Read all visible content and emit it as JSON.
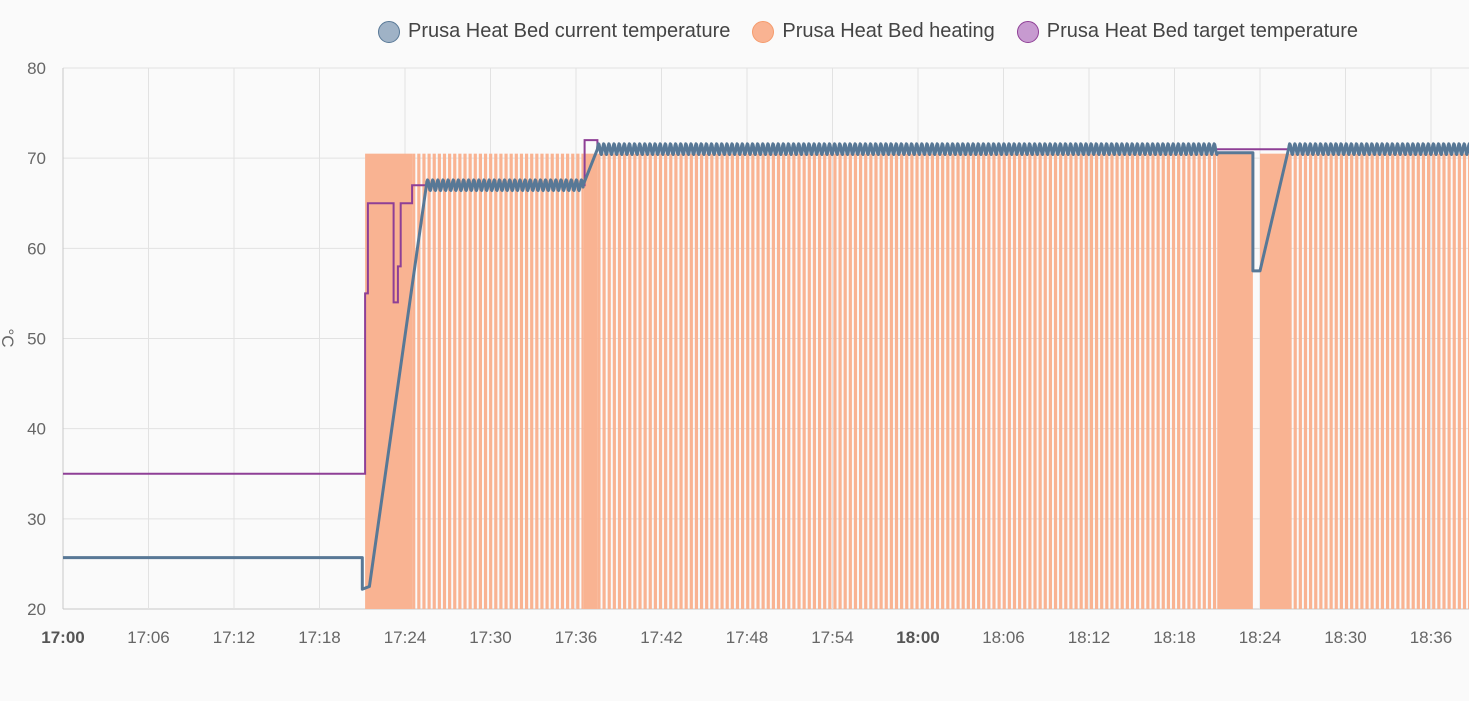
{
  "chart_data": {
    "type": "line",
    "title": "",
    "ylabel": "°C",
    "ylim": [
      20,
      80
    ],
    "xlim": [
      "17:00",
      "18:39"
    ],
    "y_ticks": [
      20,
      30,
      40,
      50,
      60,
      70,
      80
    ],
    "x_ticks": [
      {
        "label": "17:00",
        "bold": true
      },
      {
        "label": "17:06",
        "bold": false
      },
      {
        "label": "17:12",
        "bold": false
      },
      {
        "label": "17:18",
        "bold": false
      },
      {
        "label": "17:24",
        "bold": false
      },
      {
        "label": "17:30",
        "bold": false
      },
      {
        "label": "17:36",
        "bold": false
      },
      {
        "label": "17:42",
        "bold": false
      },
      {
        "label": "17:48",
        "bold": false
      },
      {
        "label": "17:54",
        "bold": false
      },
      {
        "label": "18:00",
        "bold": true
      },
      {
        "label": "18:06",
        "bold": false
      },
      {
        "label": "18:12",
        "bold": false
      },
      {
        "label": "18:18",
        "bold": false
      },
      {
        "label": "18:24",
        "bold": false
      },
      {
        "label": "18:30",
        "bold": false
      },
      {
        "label": "18:36",
        "bold": false
      }
    ],
    "grid": true,
    "legend_position": "top",
    "series": [
      {
        "name": "Prusa Heat Bed current temperature",
        "color": "#587896",
        "fill": "#9fb2c6",
        "kind": "line",
        "segments": [
          {
            "x": [
              "17:00",
              "17:21"
            ],
            "y": [
              25.7,
              25.7
            ]
          },
          {
            "x": [
              "17:21",
              "17:21.5"
            ],
            "y": [
              22.2,
              22.5
            ]
          },
          {
            "x": [
              "17:21.5",
              "17:25.5"
            ],
            "y": [
              22.5,
              67.0
            ]
          },
          {
            "x": [
              "17:25.5",
              "17:36.5"
            ],
            "y": [
              67.0,
              67.0
            ],
            "oscillation": 0.6
          },
          {
            "x": [
              "17:36.5",
              "17:37.5"
            ],
            "y": [
              67.0,
              71.0
            ]
          },
          {
            "x": [
              "17:37.5",
              "18:21"
            ],
            "y": [
              71.0,
              71.0
            ],
            "oscillation": 0.6
          },
          {
            "x": [
              "18:21",
              "18:23.5"
            ],
            "y": [
              70.6,
              70.6
            ]
          },
          {
            "x": [
              "18:23.5",
              "18:24"
            ],
            "y": [
              57.5,
              57.5
            ]
          },
          {
            "x": [
              "18:24",
              "18:26"
            ],
            "y": [
              57.5,
              71.0
            ]
          },
          {
            "x": [
              "18:26",
              "18:39"
            ],
            "y": [
              71.0,
              71.0
            ],
            "oscillation": 0.6
          }
        ]
      },
      {
        "name": "Prusa Heat Bed heating",
        "color": "#f59b6c",
        "fill": "#f9b392",
        "kind": "on_off_area",
        "segments": [
          {
            "x": [
              "17:21.2",
              "17:24.5"
            ],
            "state": "on"
          },
          {
            "x": [
              "17:24.5",
              "17:36.5"
            ],
            "state": "pulsing"
          },
          {
            "x": [
              "17:36.5",
              "17:37.5"
            ],
            "state": "on"
          },
          {
            "x": [
              "17:37.5",
              "18:21"
            ],
            "state": "pulsing"
          },
          {
            "x": [
              "18:21",
              "18:23.5"
            ],
            "state": "on"
          },
          {
            "x": [
              "18:23.5",
              "18:24"
            ],
            "state": "off"
          },
          {
            "x": [
              "18:24",
              "18:26"
            ],
            "state": "on"
          },
          {
            "x": [
              "18:26",
              "18:39"
            ],
            "state": "pulsing"
          }
        ]
      },
      {
        "name": "Prusa Heat Bed target temperature",
        "color": "#8e3f96",
        "fill": "#c79ad0",
        "kind": "step",
        "points": [
          [
            "17:00",
            35
          ],
          [
            "17:21.2",
            35
          ],
          [
            "17:21.2",
            55
          ],
          [
            "17:21.4",
            55
          ],
          [
            "17:21.4",
            65
          ],
          [
            "17:23.2",
            65
          ],
          [
            "17:23.2",
            54
          ],
          [
            "17:23.5",
            54
          ],
          [
            "17:23.5",
            58
          ],
          [
            "17:23.7",
            58
          ],
          [
            "17:23.7",
            65
          ],
          [
            "17:24.5",
            65
          ],
          [
            "17:24.5",
            67
          ],
          [
            "17:36.6",
            67
          ],
          [
            "17:36.6",
            72
          ],
          [
            "17:37.5",
            72
          ],
          [
            "17:37.5",
            71
          ],
          [
            "18:39",
            71
          ]
        ]
      }
    ]
  }
}
